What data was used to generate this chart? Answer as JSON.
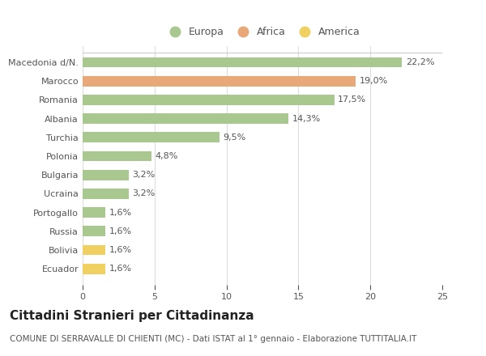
{
  "categories": [
    "Ecuador",
    "Bolivia",
    "Russia",
    "Portogallo",
    "Ucraina",
    "Bulgaria",
    "Polonia",
    "Turchia",
    "Albania",
    "Romania",
    "Marocco",
    "Macedonia d/N."
  ],
  "values": [
    1.6,
    1.6,
    1.6,
    1.6,
    3.2,
    3.2,
    4.8,
    9.5,
    14.3,
    17.5,
    19.0,
    22.2
  ],
  "bar_colors": [
    "#f0d060",
    "#f0d060",
    "#a8c890",
    "#a8c890",
    "#a8c890",
    "#a8c890",
    "#a8c890",
    "#a8c890",
    "#a8c890",
    "#a8c890",
    "#e8a878",
    "#a8c890"
  ],
  "labels": [
    "1,6%",
    "1,6%",
    "1,6%",
    "1,6%",
    "3,2%",
    "3,2%",
    "4,8%",
    "9,5%",
    "14,3%",
    "17,5%",
    "19,0%",
    "22,2%"
  ],
  "legend_labels": [
    "Europa",
    "Africa",
    "America"
  ],
  "legend_colors": [
    "#a8c890",
    "#e8a878",
    "#f0d060"
  ],
  "title": "Cittadini Stranieri per Cittadinanza",
  "subtitle": "COMUNE DI SERRAVALLE DI CHIENTI (MC) - Dati ISTAT al 1° gennaio - Elaborazione TUTTITALIA.IT",
  "xlim": [
    0,
    25
  ],
  "xticks": [
    0,
    5,
    10,
    15,
    20,
    25
  ],
  "background_color": "#ffffff",
  "bar_height": 0.55,
  "label_fontsize": 8,
  "title_fontsize": 11,
  "subtitle_fontsize": 7.5,
  "tick_fontsize": 8,
  "legend_fontsize": 9
}
